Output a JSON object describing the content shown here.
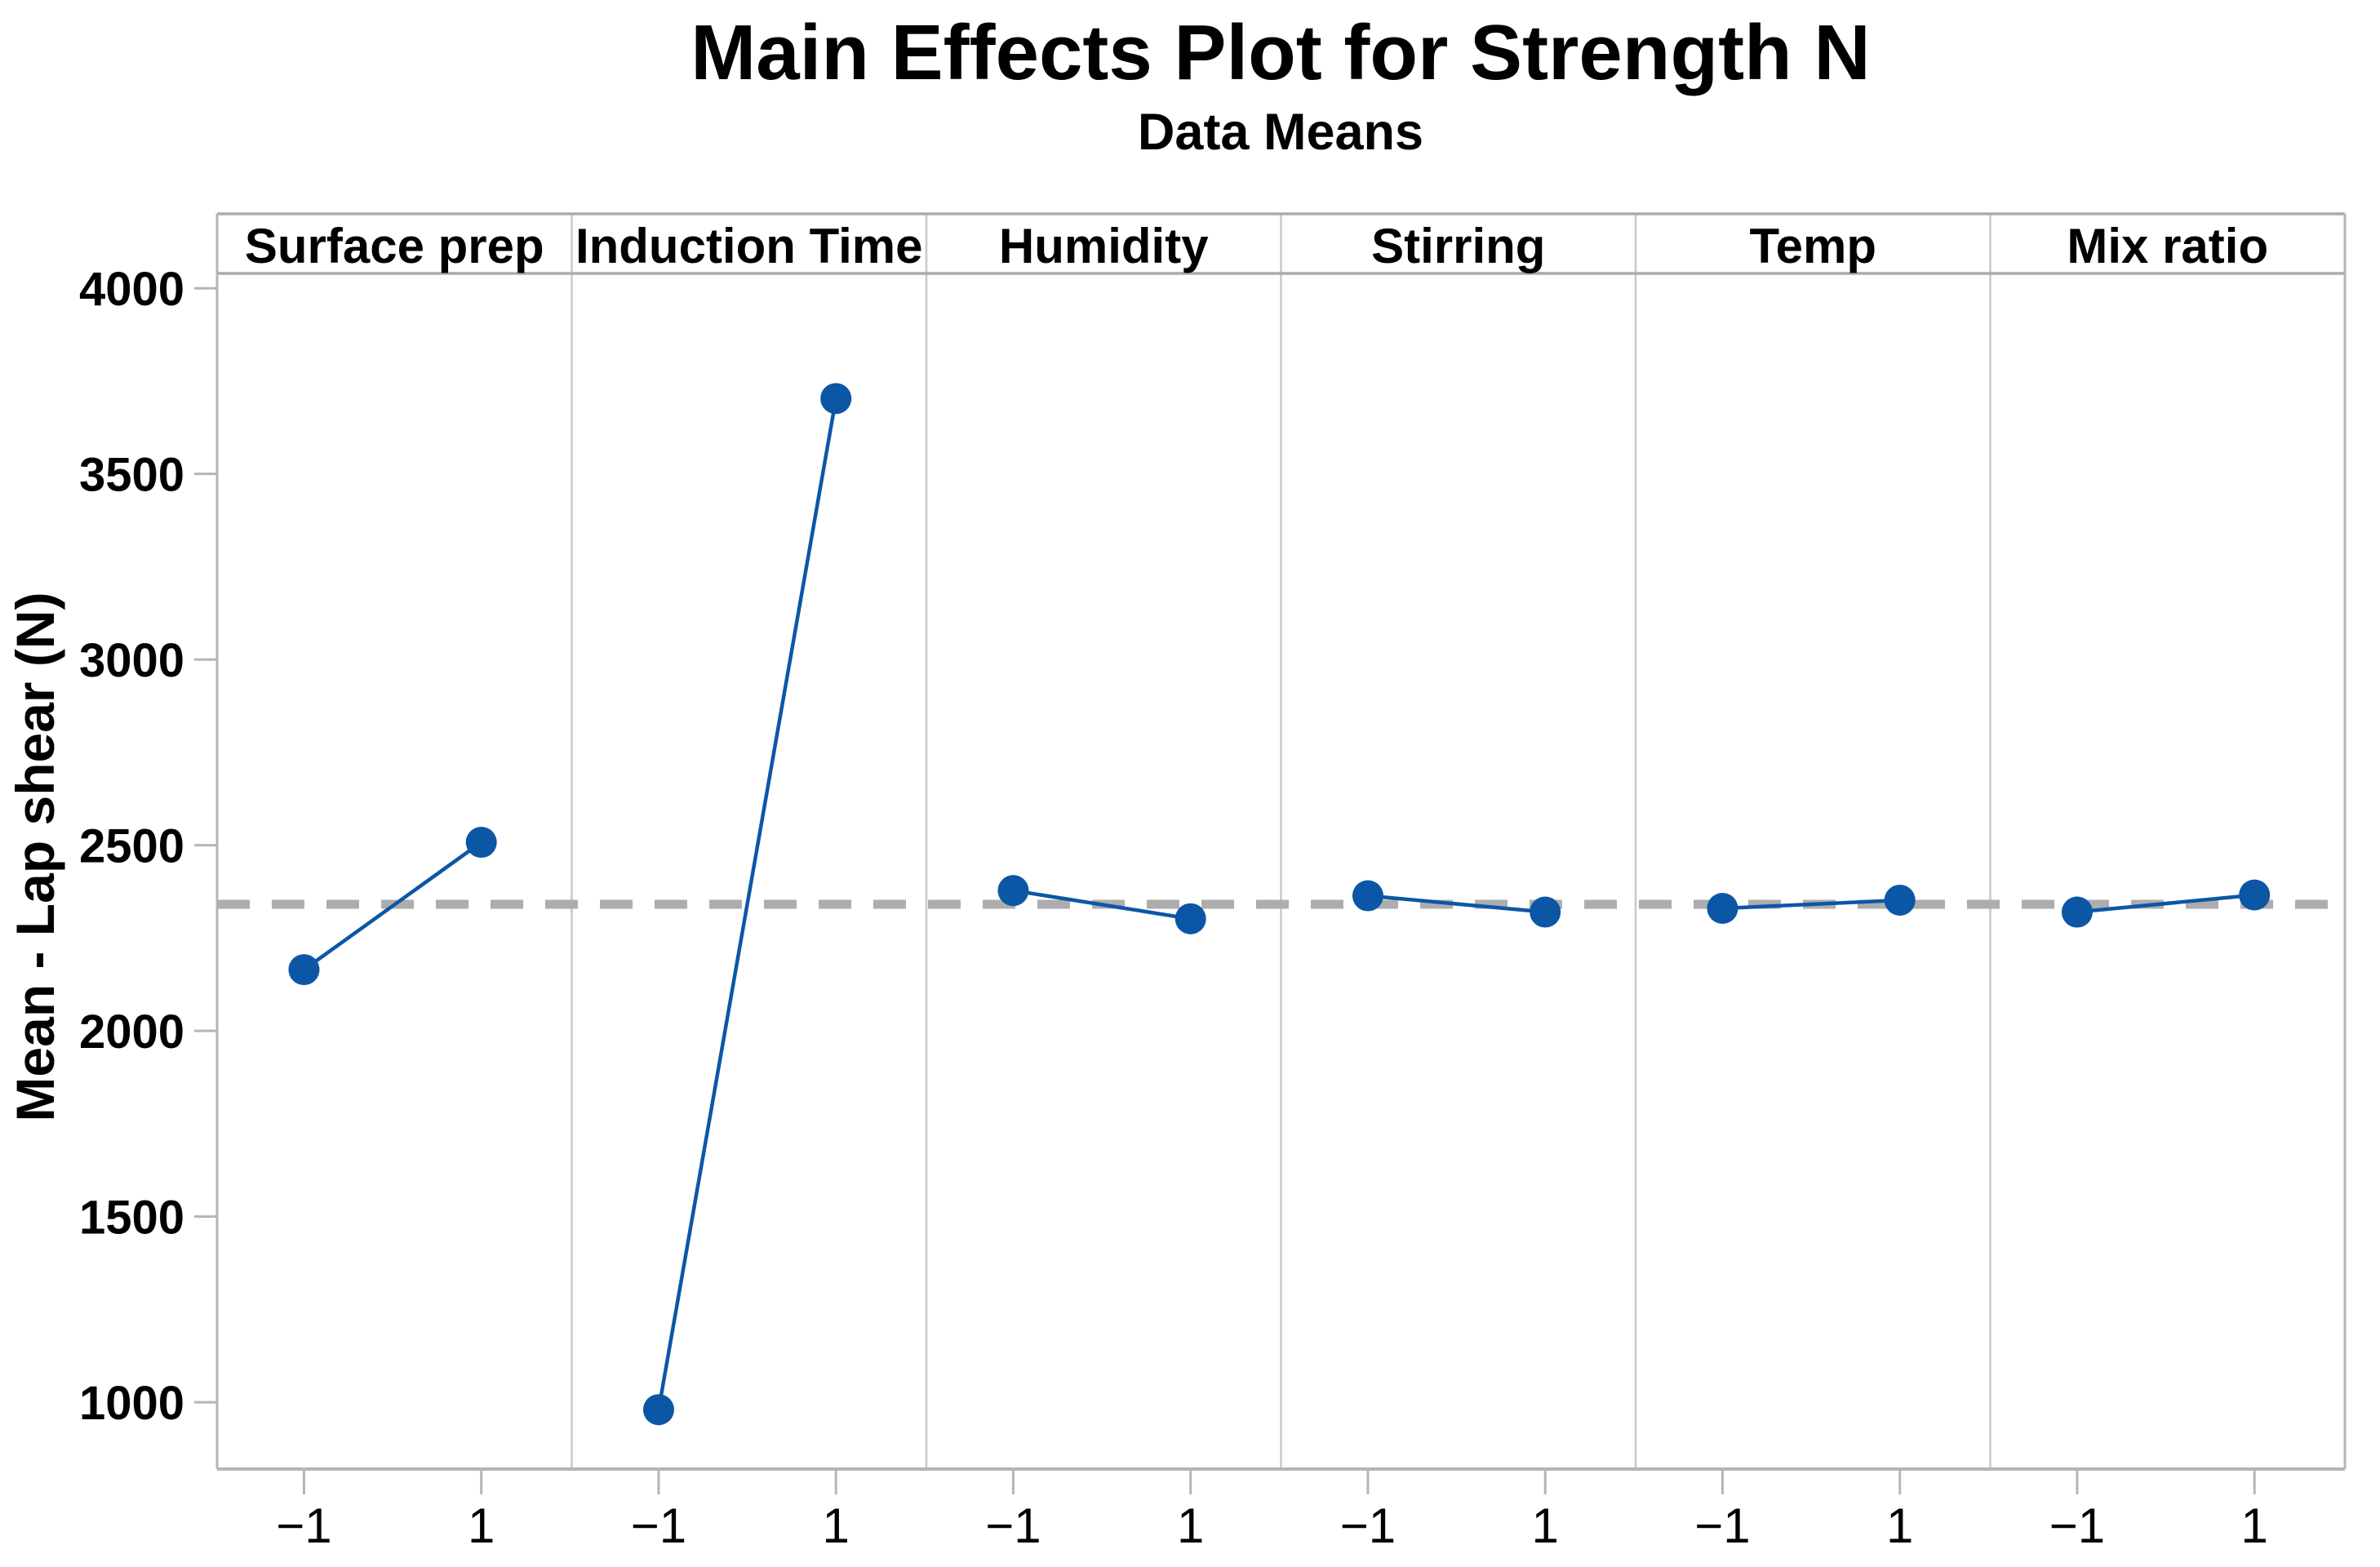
{
  "chart_data": {
    "type": "line",
    "title": "Main Effects Plot for Strength N",
    "subtitle": "Data Means",
    "ylabel": "Mean - Lap shear (N)",
    "xlabel": "",
    "legend_position": "none",
    "grid": false,
    "y_ticks": [
      1000,
      1500,
      2000,
      2500,
      3000,
      3500,
      4000
    ],
    "ylim": [
      820,
      4040
    ],
    "x_tick_labels": [
      "−1",
      "1"
    ],
    "x_levels": [
      -1,
      1
    ],
    "mean_line": 2341,
    "panels": [
      {
        "factor": "Surface prep",
        "x": [
          -1,
          1
        ],
        "means": [
          2165,
          2508
        ]
      },
      {
        "factor": "Induction Time",
        "x": [
          -1,
          1
        ],
        "means": [
          980,
          3703
        ]
      },
      {
        "factor": "Humidity",
        "x": [
          -1,
          1
        ],
        "means": [
          2378,
          2302
        ]
      },
      {
        "factor": "Stirring",
        "x": [
          -1,
          1
        ],
        "means": [
          2364,
          2320
        ]
      },
      {
        "factor": "Temp",
        "x": [
          -1,
          1
        ],
        "means": [
          2330,
          2352
        ]
      },
      {
        "factor": "Mix ratio",
        "x": [
          -1,
          1
        ],
        "means": [
          2320,
          2366
        ]
      }
    ],
    "colors": {
      "point_and_line": "#0b57a6",
      "mean_dashed_line": "#adadad",
      "axis_frame": "#b5b5b5",
      "panel_separator": "#c8c8c8",
      "header_band_border": "#ababab",
      "text": "#000000",
      "background": "#ffffff"
    }
  }
}
